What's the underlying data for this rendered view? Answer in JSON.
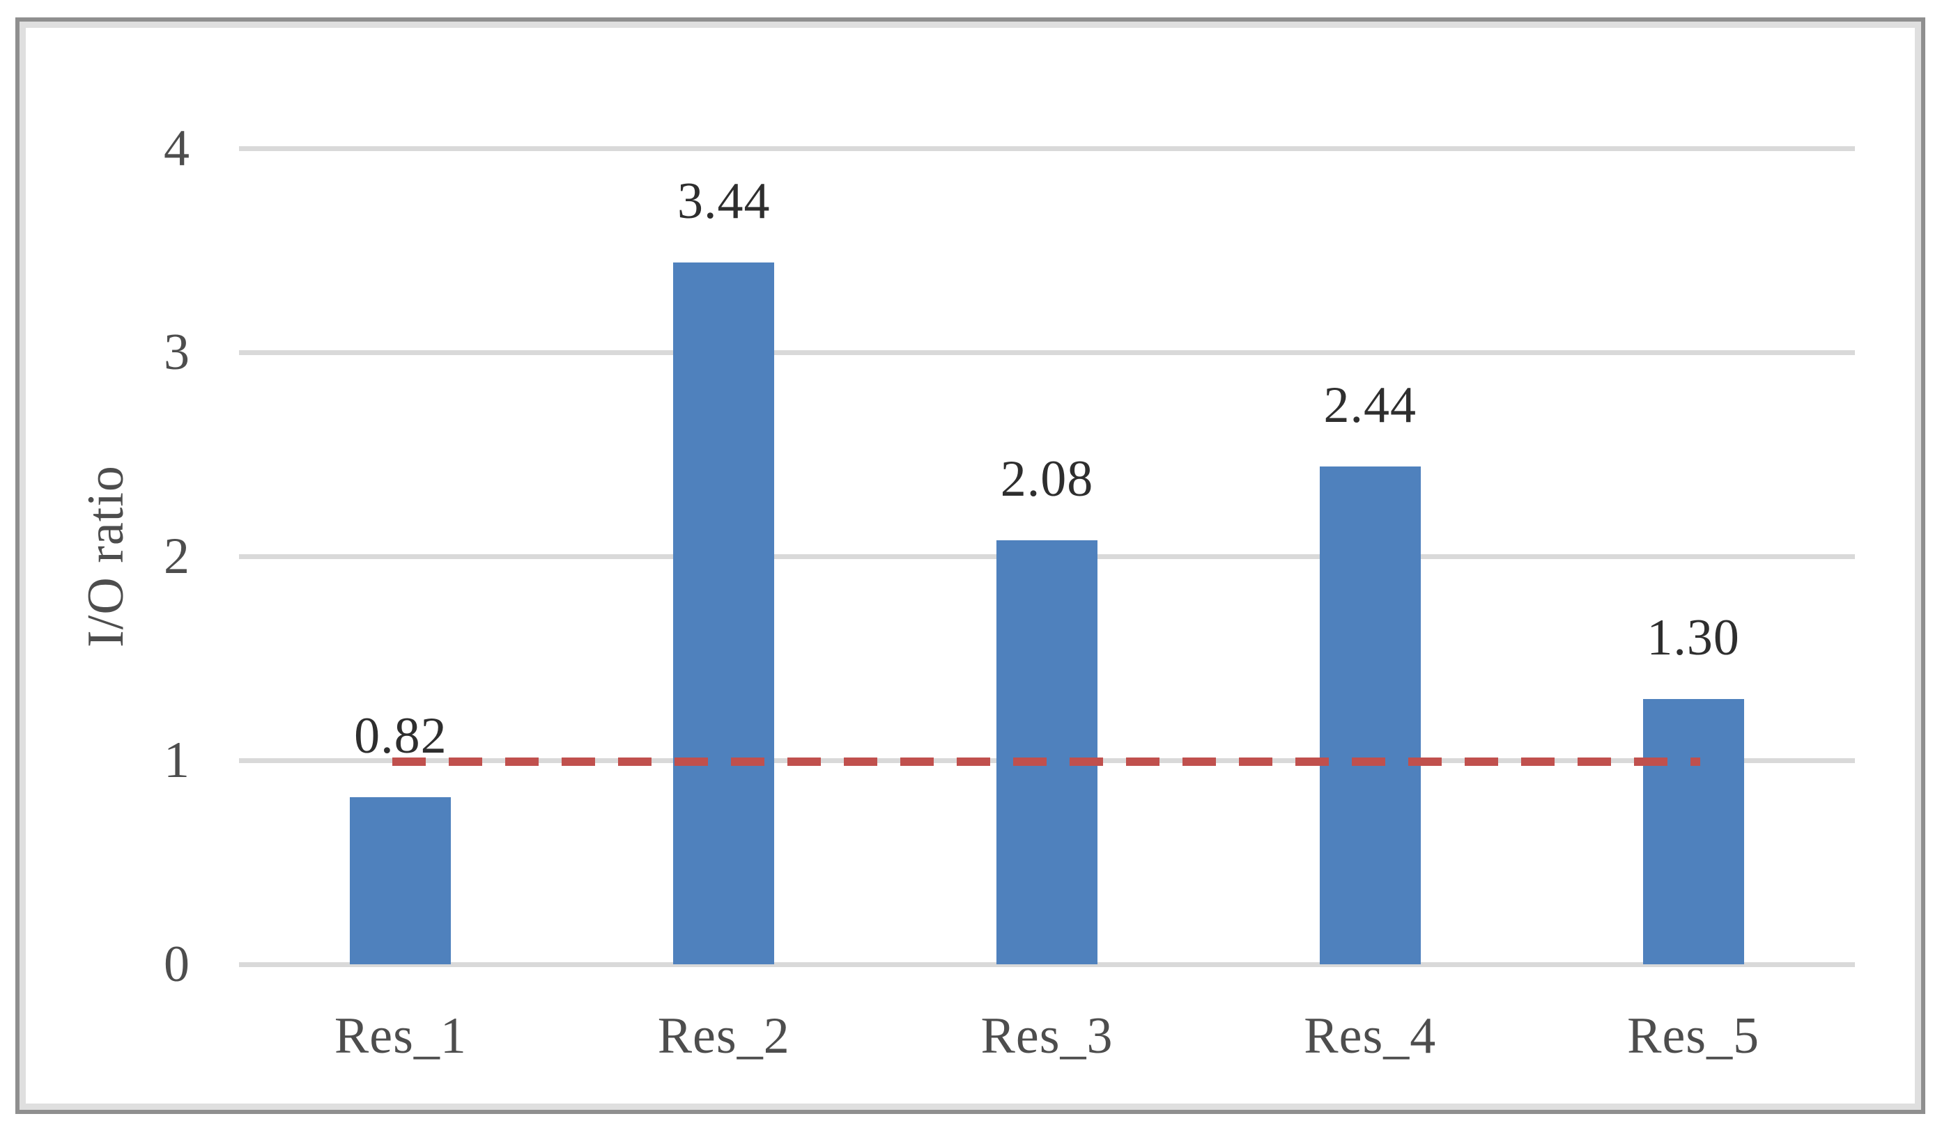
{
  "chart_data": {
    "type": "bar",
    "title": "",
    "categories": [
      "Res_1",
      "Res_2",
      "Res_3",
      "Res_4",
      "Res_5"
    ],
    "values": [
      0.82,
      3.44,
      2.08,
      2.44,
      1.3
    ],
    "value_labels": [
      "0.82",
      "3.44",
      "2.08",
      "2.44",
      "1.30"
    ],
    "xlabel": "",
    "ylabel": "I/O ratio",
    "yticks": [
      "0",
      "1",
      "2",
      "3",
      "4"
    ],
    "ylim": [
      0,
      4
    ],
    "grid": "horizontal",
    "legend_position": "none",
    "series_name": "I/O ratio",
    "reference_line": {
      "y": 1,
      "style": "dashed",
      "color": "#C0504D"
    },
    "colors": {
      "bar": "#4F81BD",
      "reference_line": "#C0504D",
      "gridline": "#D9D9D9",
      "axis_text": "#4D4D4D",
      "value_label_text": "#2E2E2E",
      "frame_border": "#8F8F8F"
    }
  }
}
